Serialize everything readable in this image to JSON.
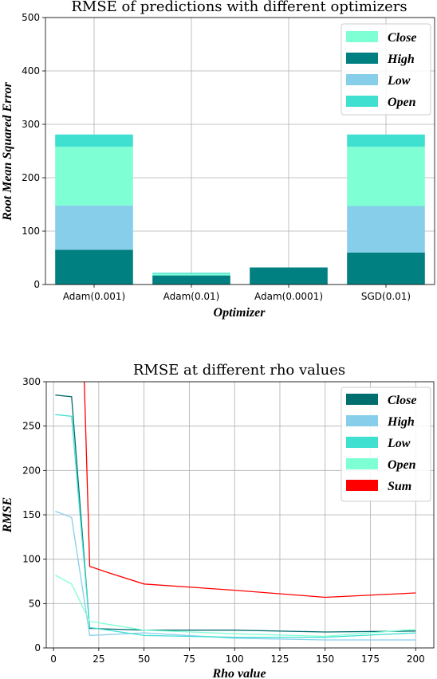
{
  "chart_data": [
    {
      "type": "bar",
      "stacked": true,
      "title": "RMSE of predictions with different optimizers",
      "xlabel": "Optimizer",
      "ylabel": "Root Mean Squared Error",
      "categories": [
        "Adam(0.001)",
        "Adam(0.01)",
        "Adam(0.0001)",
        "SGD(0.01)"
      ],
      "series": [
        {
          "name": "High",
          "color": "#008080",
          "values": [
            65,
            17,
            32,
            60
          ]
        },
        {
          "name": "Low",
          "color": "#87ceeb",
          "values": [
            83,
            0,
            0,
            87
          ]
        },
        {
          "name": "Close",
          "color": "#7fffd4",
          "values": [
            110,
            3,
            0,
            111
          ]
        },
        {
          "name": "Open",
          "color": "#40e0d0",
          "values": [
            23,
            2,
            0,
            23
          ]
        }
      ],
      "legend_order": [
        "Close",
        "High",
        "Low",
        "Open"
      ],
      "legend_colors": [
        "#7fffd4",
        "#008080",
        "#87ceeb",
        "#40e0d0"
      ],
      "legend_position": "top-right",
      "ylim": [
        0,
        500
      ],
      "yticks": [
        0,
        100,
        200,
        300,
        400,
        500
      ],
      "grid": true
    },
    {
      "type": "line",
      "title": "RMSE at different rho values",
      "xlabel": "Rho value",
      "ylabel": "RMSE",
      "x": [
        1,
        10,
        20,
        50,
        100,
        150,
        200
      ],
      "series": [
        {
          "name": "Close",
          "color": "#006d6f",
          "values": [
            285,
            283,
            22,
            20,
            20,
            18,
            19
          ]
        },
        {
          "name": "High",
          "color": "#87ceeb",
          "values": [
            154,
            147,
            14,
            17,
            11,
            9,
            9
          ]
        },
        {
          "name": "Low",
          "color": "#40e0d0",
          "values": [
            263,
            261,
            23,
            14,
            12,
            12,
            17
          ]
        },
        {
          "name": "Open",
          "color": "#7fffd4",
          "values": [
            82,
            72,
            30,
            20,
            16,
            13,
            21
          ]
        },
        {
          "name": "Sum",
          "color": "#ff0000",
          "x": [
            17,
            20,
            30,
            50,
            100,
            150,
            200
          ],
          "values": [
            300,
            92,
            85,
            72,
            65,
            57,
            62
          ]
        }
      ],
      "legend_position": "top-right",
      "xlim": [
        -4,
        210
      ],
      "ylim": [
        0,
        300
      ],
      "xticks": [
        0,
        25,
        50,
        75,
        100,
        125,
        150,
        175,
        200
      ],
      "yticks": [
        0,
        50,
        100,
        150,
        200,
        250,
        300
      ],
      "grid": true
    }
  ]
}
